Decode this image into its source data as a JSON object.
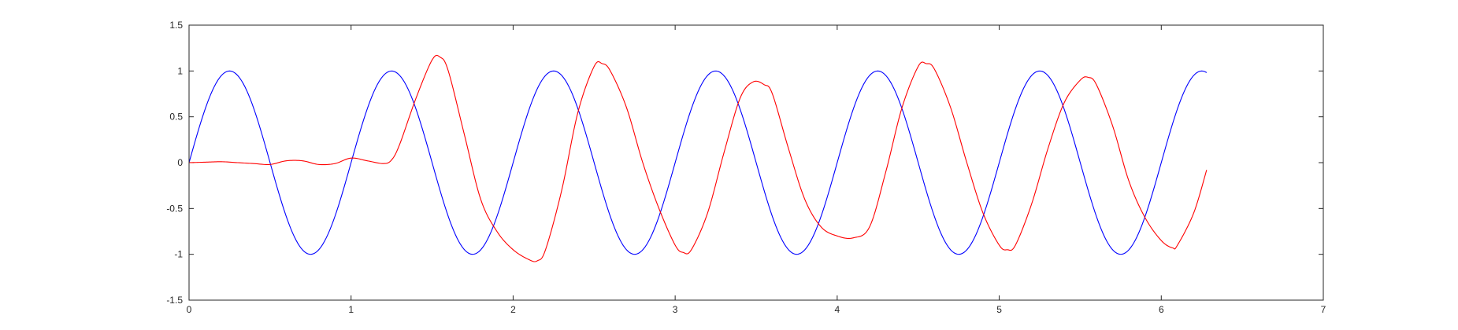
{
  "chart_data": {
    "type": "line",
    "title": "",
    "xlabel": "",
    "ylabel": "",
    "xlim": [
      0,
      7
    ],
    "ylim": [
      -1.5,
      1.5
    ],
    "x_ticks": [
      "0",
      "1",
      "2",
      "3",
      "4",
      "5",
      "6",
      "7"
    ],
    "y_ticks": [
      "1.5",
      "1",
      "0.5",
      "0",
      "-0.5",
      "-1",
      "-1.5"
    ],
    "grid": false,
    "legend": "none",
    "series": [
      {
        "color": "#0000ff",
        "style": "sine",
        "x_range": [
          0,
          6.28
        ],
        "period": 1.0,
        "amplitude": 1.0,
        "note_hidden": true
      },
      {
        "color": "#ff0000",
        "x": [
          0,
          0.1,
          0.2,
          0.3,
          0.4,
          0.5,
          0.6,
          0.7,
          0.8,
          0.9,
          1.0,
          1.1,
          1.2,
          1.25,
          1.3,
          1.4,
          1.5,
          1.55,
          1.6,
          1.7,
          1.8,
          1.9,
          2.0,
          2.1,
          2.15,
          2.2,
          2.3,
          2.4,
          2.5,
          2.55,
          2.6,
          2.7,
          2.8,
          2.9,
          3.0,
          3.05,
          3.1,
          3.2,
          3.3,
          3.4,
          3.48,
          3.55,
          3.6,
          3.7,
          3.8,
          3.9,
          4.0,
          4.1,
          4.2,
          4.3,
          4.4,
          4.5,
          4.55,
          4.6,
          4.7,
          4.8,
          4.9,
          5.0,
          5.05,
          5.1,
          5.2,
          5.3,
          5.4,
          5.5,
          5.55,
          5.6,
          5.7,
          5.8,
          5.9,
          6.0,
          6.07,
          6.1,
          6.2,
          6.28
        ],
        "y": [
          0.0,
          0.005,
          0.01,
          0.0,
          -0.01,
          -0.02,
          0.02,
          0.02,
          -0.02,
          -0.01,
          0.05,
          0.02,
          -0.01,
          0.03,
          0.2,
          0.7,
          1.12,
          1.15,
          1.0,
          0.3,
          -0.4,
          -0.75,
          -0.95,
          -1.06,
          -1.07,
          -0.95,
          -0.3,
          0.55,
          1.05,
          1.08,
          1.0,
          0.6,
          0.0,
          -0.5,
          -0.9,
          -0.98,
          -0.95,
          -0.55,
          0.1,
          0.7,
          0.88,
          0.85,
          0.75,
          0.15,
          -0.4,
          -0.7,
          -0.8,
          -0.82,
          -0.7,
          -0.1,
          0.6,
          1.05,
          1.08,
          1.02,
          0.6,
          0.0,
          -0.55,
          -0.9,
          -0.95,
          -0.9,
          -0.45,
          0.15,
          0.65,
          0.9,
          0.93,
          0.85,
          0.4,
          -0.2,
          -0.6,
          -0.85,
          -0.93,
          -0.9,
          -0.55,
          -0.08
        ]
      }
    ]
  }
}
